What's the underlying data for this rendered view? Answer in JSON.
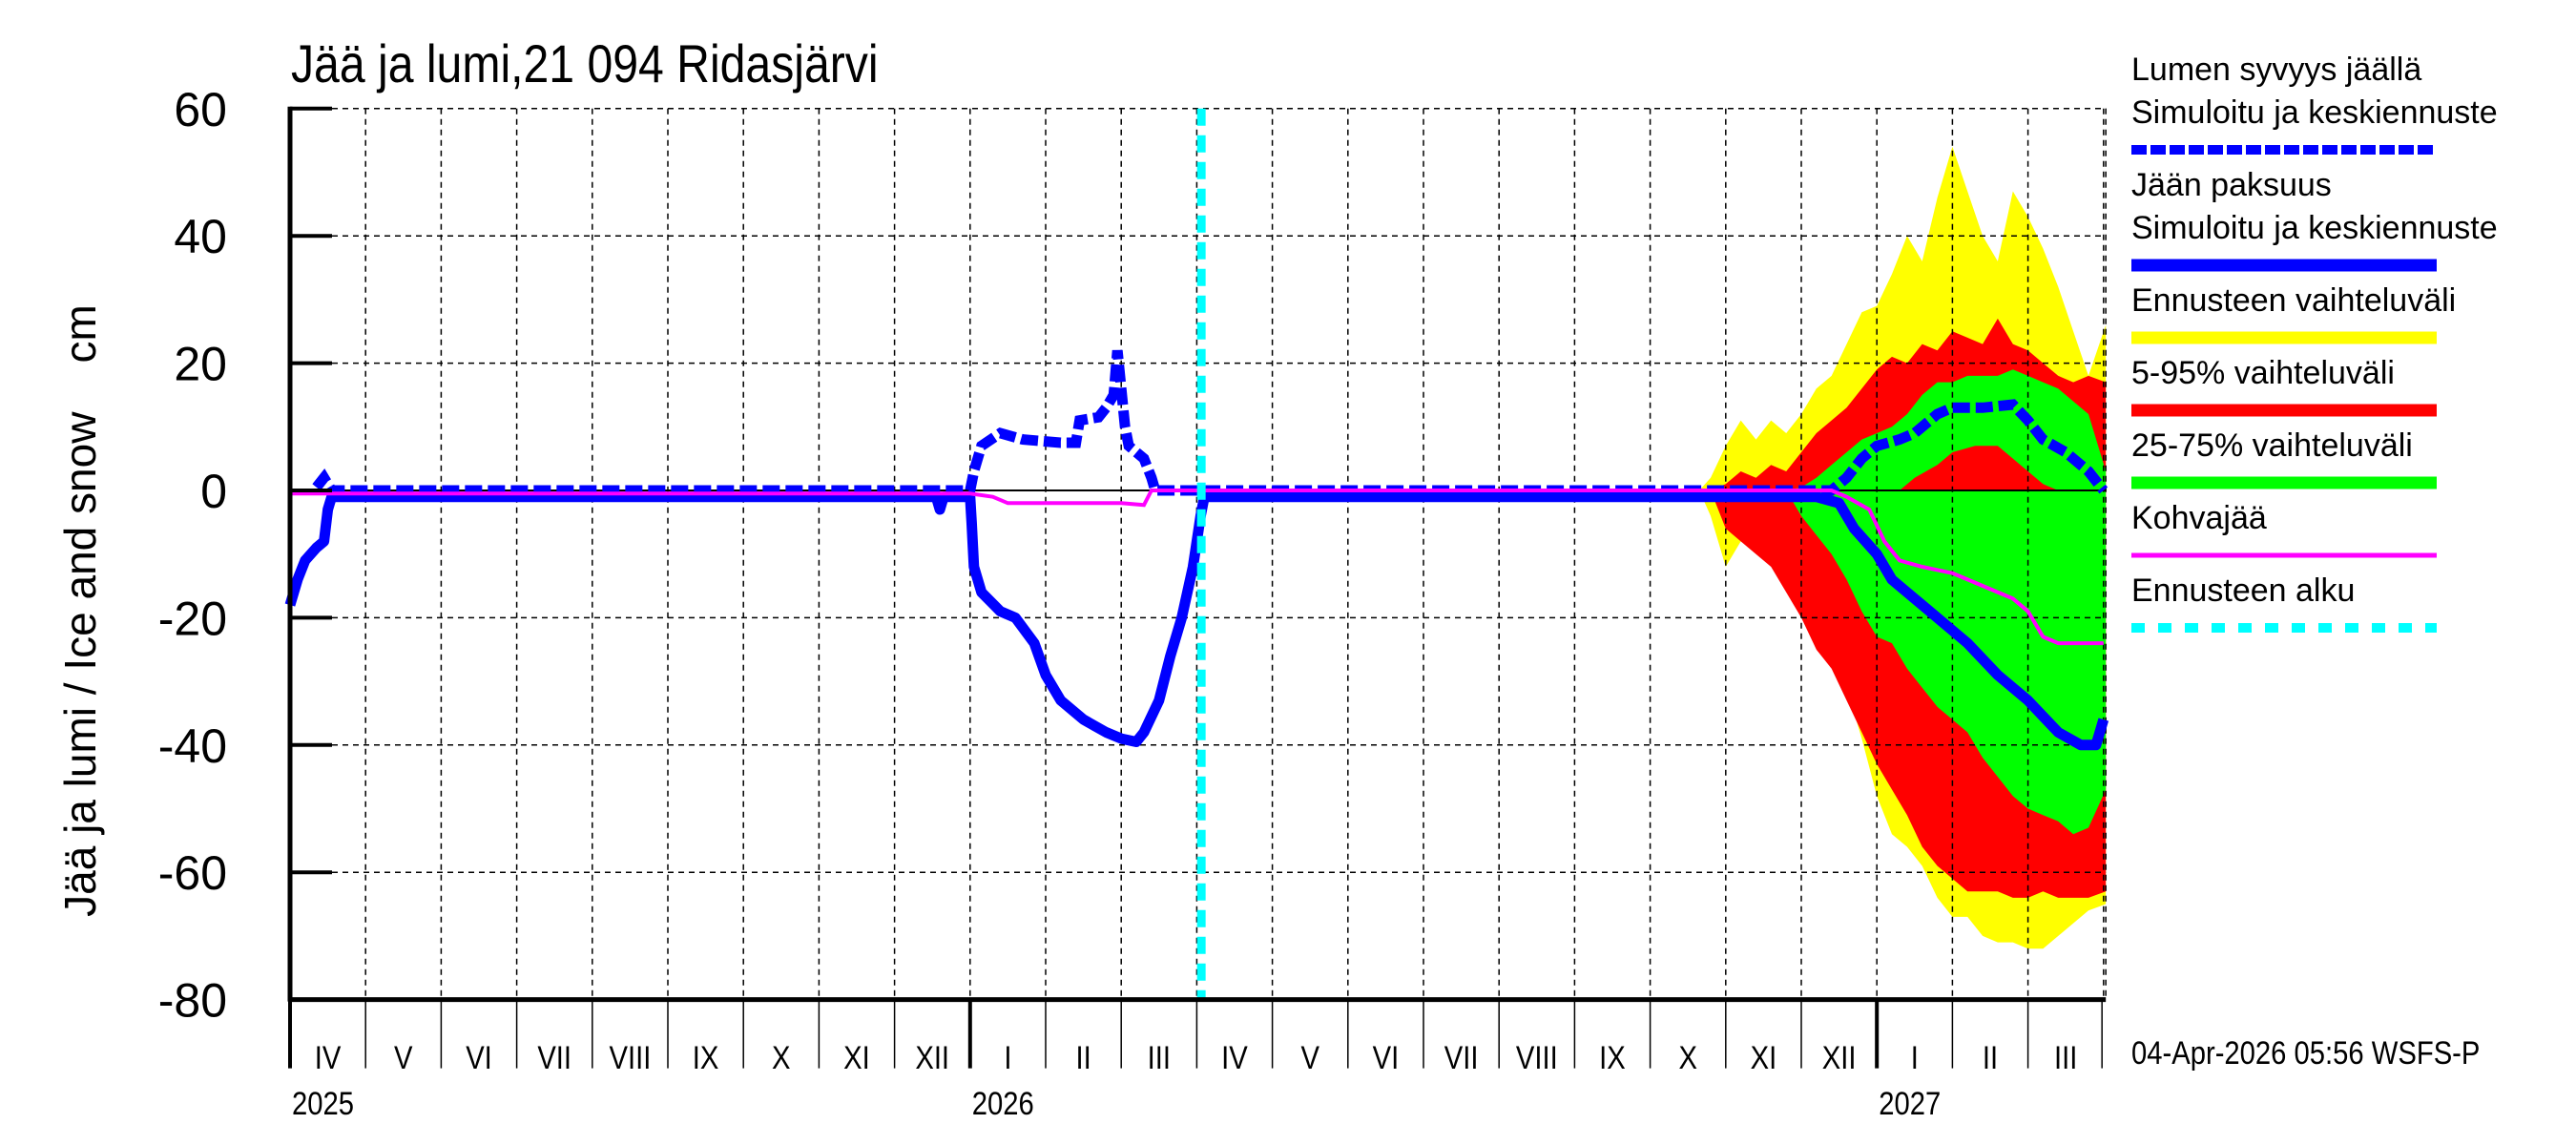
{
  "chart_data": {
    "type": "area",
    "title": "Jää ja lumi,21 094 Ridasjärvi",
    "ylabel": "Jää ja lumi / Ice and snow    cm",
    "xlabel": "",
    "ylim": [
      -80,
      60
    ],
    "yticks": [
      60,
      40,
      20,
      0,
      -20,
      -40,
      -60,
      -80
    ],
    "grid": true,
    "legend_position": "right",
    "x_unit": "month index from 2025-04-01",
    "months": [
      "IV",
      "V",
      "VI",
      "VII",
      "VIII",
      "IX",
      "X",
      "XI",
      "XII",
      "I",
      "II",
      "III",
      "IV",
      "V",
      "VI",
      "VII",
      "VIII",
      "IX",
      "X",
      "XI",
      "XII",
      "I",
      "II",
      "III"
    ],
    "years": [
      {
        "label": "2025",
        "month_index": 0
      },
      {
        "label": "2026",
        "month_index": 9
      },
      {
        "label": "2027",
        "month_index": 21
      }
    ],
    "x_range": [
      0,
      24.03
    ],
    "forecast_start_index": 12.06,
    "timestamp": "04-Apr-2026 05:56 WSFS-P",
    "legend": [
      {
        "label": "Lumen syvyys jäällä",
        "label2": "Simuloitu ja keskiennuste",
        "color": "#0000ff",
        "style": "dashed-thick"
      },
      {
        "label": "Jään paksuus",
        "label2": "Simuloitu ja keskiennuste",
        "color": "#0000ff",
        "style": "solid-thick"
      },
      {
        "label": "Ennusteen vaihteluväli",
        "color": "#ffff00",
        "style": "band"
      },
      {
        "label": "5-95% vaihteluväli",
        "color": "#ff0000",
        "style": "band"
      },
      {
        "label": "25-75% vaihteluväli",
        "color": "#00ff00",
        "style": "band"
      },
      {
        "label": "Kohvajää",
        "color": "#ff00ff",
        "style": "solid-thin"
      },
      {
        "label": "Ennusteen alku",
        "color": "#00ffff",
        "style": "dashed"
      }
    ],
    "series": [
      {
        "name": "Jään paksuus (ice thickness, plotted negative)",
        "color": "#0000ff",
        "points": [
          [
            0,
            -18
          ],
          [
            0.1,
            -14
          ],
          [
            0.2,
            -11
          ],
          [
            0.35,
            -9
          ],
          [
            0.45,
            -8
          ],
          [
            0.5,
            -3
          ],
          [
            0.55,
            -1
          ],
          [
            1,
            -1
          ],
          [
            4,
            -1
          ],
          [
            8,
            -1
          ],
          [
            8.55,
            -1
          ],
          [
            8.6,
            -3
          ],
          [
            8.65,
            -1
          ],
          [
            9.0,
            -1
          ],
          [
            9.02,
            -5
          ],
          [
            9.05,
            -12
          ],
          [
            9.15,
            -16
          ],
          [
            9.4,
            -19
          ],
          [
            9.6,
            -20
          ],
          [
            9.85,
            -24
          ],
          [
            10.0,
            -29
          ],
          [
            10.2,
            -33
          ],
          [
            10.5,
            -36
          ],
          [
            10.8,
            -38
          ],
          [
            11.0,
            -39
          ],
          [
            11.2,
            -39.5
          ],
          [
            11.3,
            -38
          ],
          [
            11.5,
            -33
          ],
          [
            11.65,
            -26
          ],
          [
            11.8,
            -20
          ],
          [
            11.95,
            -12
          ],
          [
            12.05,
            -4
          ],
          [
            12.1,
            -1
          ],
          [
            13,
            -1
          ],
          [
            16,
            -1
          ],
          [
            19,
            -1
          ],
          [
            20.2,
            -1
          ],
          [
            20.5,
            -2
          ],
          [
            20.7,
            -6
          ],
          [
            21.0,
            -10
          ],
          [
            21.2,
            -14
          ],
          [
            21.5,
            -17
          ],
          [
            21.8,
            -20
          ],
          [
            22.2,
            -24
          ],
          [
            22.6,
            -29
          ],
          [
            23.0,
            -33
          ],
          [
            23.4,
            -38
          ],
          [
            23.7,
            -40
          ],
          [
            23.9,
            -40
          ],
          [
            24.0,
            -36
          ]
        ]
      },
      {
        "name": "Lumen syvyys jäällä (snow depth on ice)",
        "color": "#0000ff",
        "points": [
          [
            0.35,
            0.5
          ],
          [
            0.45,
            2
          ],
          [
            0.55,
            0
          ],
          [
            1,
            0
          ],
          [
            9.0,
            0
          ],
          [
            9.05,
            3
          ],
          [
            9.15,
            7
          ],
          [
            9.4,
            9
          ],
          [
            9.7,
            8
          ],
          [
            10.2,
            7.5
          ],
          [
            10.4,
            7.5
          ],
          [
            10.45,
            11
          ],
          [
            10.7,
            11.5
          ],
          [
            10.8,
            13
          ],
          [
            10.9,
            15
          ],
          [
            10.95,
            22
          ],
          [
            11.0,
            16
          ],
          [
            11.05,
            10
          ],
          [
            11.1,
            7
          ],
          [
            11.3,
            5
          ],
          [
            11.4,
            2
          ],
          [
            11.45,
            0
          ],
          [
            20.4,
            0
          ],
          [
            20.6,
            2
          ],
          [
            20.8,
            5
          ],
          [
            21.0,
            7
          ],
          [
            21.3,
            8
          ],
          [
            21.5,
            9
          ],
          [
            21.8,
            12
          ],
          [
            22.0,
            13
          ],
          [
            22.4,
            13
          ],
          [
            22.8,
            13.5
          ],
          [
            23.0,
            11
          ],
          [
            23.2,
            8
          ],
          [
            23.5,
            6
          ],
          [
            23.8,
            3
          ],
          [
            24.0,
            0
          ]
        ]
      },
      {
        "name": "Kohvajää (slush ice)",
        "color": "#ff00ff",
        "points": [
          [
            0,
            -0.5
          ],
          [
            9.0,
            -0.5
          ],
          [
            9.3,
            -1
          ],
          [
            9.5,
            -2
          ],
          [
            11.0,
            -2
          ],
          [
            11.3,
            -2.3
          ],
          [
            11.4,
            0
          ],
          [
            12,
            0
          ],
          [
            20.4,
            0
          ],
          [
            20.6,
            -1
          ],
          [
            20.9,
            -3
          ],
          [
            21.1,
            -8
          ],
          [
            21.3,
            -11
          ],
          [
            21.6,
            -12
          ],
          [
            22.0,
            -13
          ],
          [
            22.4,
            -15
          ],
          [
            22.8,
            -17
          ],
          [
            23.0,
            -19
          ],
          [
            23.2,
            -23
          ],
          [
            23.4,
            -24
          ],
          [
            24.0,
            -24
          ]
        ]
      }
    ],
    "bands": [
      {
        "name": "Ennusteen vaihteluväli (full range)",
        "color": "#ffff00",
        "upper": [
          [
            18.65,
            0
          ],
          [
            18.8,
            2
          ],
          [
            19.0,
            7
          ],
          [
            19.2,
            11
          ],
          [
            19.4,
            8
          ],
          [
            19.6,
            11
          ],
          [
            19.8,
            9
          ],
          [
            20.0,
            12
          ],
          [
            20.2,
            16
          ],
          [
            20.4,
            18
          ],
          [
            20.6,
            23
          ],
          [
            20.8,
            28
          ],
          [
            21.0,
            29
          ],
          [
            21.2,
            34
          ],
          [
            21.4,
            40
          ],
          [
            21.6,
            36
          ],
          [
            21.8,
            46
          ],
          [
            22.0,
            54
          ],
          [
            22.2,
            47
          ],
          [
            22.4,
            40
          ],
          [
            22.6,
            36
          ],
          [
            22.8,
            47
          ],
          [
            23.0,
            43
          ],
          [
            23.2,
            38
          ],
          [
            23.4,
            32
          ],
          [
            23.6,
            25
          ],
          [
            23.8,
            18
          ],
          [
            24.03,
            26
          ]
        ],
        "lower": [
          [
            18.65,
            0
          ],
          [
            18.8,
            -4
          ],
          [
            19.0,
            -12
          ],
          [
            19.2,
            -8
          ],
          [
            19.4,
            -9
          ],
          [
            19.6,
            -11
          ],
          [
            19.8,
            -15
          ],
          [
            20.0,
            -19
          ],
          [
            20.2,
            -24
          ],
          [
            20.4,
            -27
          ],
          [
            20.6,
            -31
          ],
          [
            20.8,
            -39
          ],
          [
            21.0,
            -48
          ],
          [
            21.2,
            -54
          ],
          [
            21.4,
            -56
          ],
          [
            21.6,
            -59
          ],
          [
            21.8,
            -64
          ],
          [
            22.0,
            -67
          ],
          [
            22.2,
            -67
          ],
          [
            22.4,
            -70
          ],
          [
            22.6,
            -71
          ],
          [
            22.8,
            -71
          ],
          [
            23.0,
            -72
          ],
          [
            23.2,
            -72
          ],
          [
            23.4,
            -70
          ],
          [
            23.6,
            -68
          ],
          [
            23.8,
            -66
          ],
          [
            24.03,
            -65
          ]
        ]
      },
      {
        "name": "5-95% vaihteluväli",
        "color": "#ff0000",
        "upper": [
          [
            18.8,
            0
          ],
          [
            19.0,
            1
          ],
          [
            19.2,
            3
          ],
          [
            19.4,
            2
          ],
          [
            19.6,
            4
          ],
          [
            19.8,
            3
          ],
          [
            20.0,
            6
          ],
          [
            20.2,
            9
          ],
          [
            20.4,
            11
          ],
          [
            20.6,
            13
          ],
          [
            20.8,
            16
          ],
          [
            21.0,
            19
          ],
          [
            21.2,
            21
          ],
          [
            21.4,
            20
          ],
          [
            21.6,
            23
          ],
          [
            21.8,
            22
          ],
          [
            22.0,
            25
          ],
          [
            22.2,
            24
          ],
          [
            22.4,
            23
          ],
          [
            22.6,
            27
          ],
          [
            22.8,
            23
          ],
          [
            23.0,
            22
          ],
          [
            23.2,
            20
          ],
          [
            23.4,
            18
          ],
          [
            23.6,
            17
          ],
          [
            23.8,
            18
          ],
          [
            24.03,
            17
          ]
        ],
        "lower": [
          [
            18.8,
            0
          ],
          [
            19.0,
            -6
          ],
          [
            19.2,
            -8
          ],
          [
            19.4,
            -10
          ],
          [
            19.6,
            -12
          ],
          [
            19.8,
            -16
          ],
          [
            20.0,
            -20
          ],
          [
            20.2,
            -25
          ],
          [
            20.4,
            -28
          ],
          [
            20.6,
            -33
          ],
          [
            20.8,
            -38
          ],
          [
            21.0,
            -43
          ],
          [
            21.2,
            -47
          ],
          [
            21.4,
            -51
          ],
          [
            21.6,
            -56
          ],
          [
            21.8,
            -59
          ],
          [
            22.0,
            -61
          ],
          [
            22.2,
            -63
          ],
          [
            22.4,
            -63
          ],
          [
            22.6,
            -63
          ],
          [
            22.8,
            -64
          ],
          [
            23.0,
            -64
          ],
          [
            23.2,
            -63
          ],
          [
            23.4,
            -64
          ],
          [
            23.6,
            -64
          ],
          [
            23.8,
            -64
          ],
          [
            24.03,
            -63
          ]
        ]
      },
      {
        "name": "25-75% vaihteluväli",
        "color": "#00ff00",
        "upper": [
          [
            19.8,
            0
          ],
          [
            20.0,
            0.5
          ],
          [
            20.2,
            2
          ],
          [
            20.4,
            4
          ],
          [
            20.6,
            6
          ],
          [
            20.8,
            8
          ],
          [
            21.0,
            9
          ],
          [
            21.2,
            10
          ],
          [
            21.4,
            12
          ],
          [
            21.6,
            15
          ],
          [
            21.8,
            17
          ],
          [
            22.0,
            17
          ],
          [
            22.2,
            18
          ],
          [
            22.4,
            18
          ],
          [
            22.6,
            18
          ],
          [
            22.8,
            19
          ],
          [
            23.0,
            18
          ],
          [
            23.2,
            17
          ],
          [
            23.4,
            16
          ],
          [
            23.6,
            14
          ],
          [
            23.8,
            12
          ],
          [
            24.03,
            3
          ]
        ],
        "lower": [
          [
            19.8,
            0
          ],
          [
            20.0,
            -4
          ],
          [
            20.2,
            -7
          ],
          [
            20.4,
            -10
          ],
          [
            20.6,
            -14
          ],
          [
            20.8,
            -19
          ],
          [
            21.0,
            -23
          ],
          [
            21.2,
            -24
          ],
          [
            21.4,
            -28
          ],
          [
            21.6,
            -31
          ],
          [
            21.8,
            -34
          ],
          [
            22.0,
            -36
          ],
          [
            22.2,
            -38
          ],
          [
            22.4,
            -42
          ],
          [
            22.6,
            -45
          ],
          [
            22.8,
            -48
          ],
          [
            23.0,
            -50
          ],
          [
            23.2,
            -51
          ],
          [
            23.4,
            -52
          ],
          [
            23.6,
            -54
          ],
          [
            23.8,
            -53
          ],
          [
            24.03,
            -47
          ]
        ]
      },
      {
        "name": "Upper green band interior (red gap under median snow)",
        "color": "#ff0000",
        "upper": [
          [
            21.3,
            0
          ],
          [
            21.5,
            2
          ],
          [
            21.8,
            4
          ],
          [
            22.0,
            6
          ],
          [
            22.3,
            7
          ],
          [
            22.6,
            7
          ],
          [
            22.8,
            5
          ],
          [
            23.0,
            3
          ],
          [
            23.2,
            1
          ],
          [
            23.4,
            0
          ]
        ],
        "lower": [
          [
            21.3,
            0
          ],
          [
            23.4,
            0
          ]
        ]
      }
    ]
  },
  "axes": {
    "y_tick_labels": [
      "60",
      "40",
      "20",
      "0",
      "-20",
      "-40",
      "-60",
      "-80"
    ]
  }
}
